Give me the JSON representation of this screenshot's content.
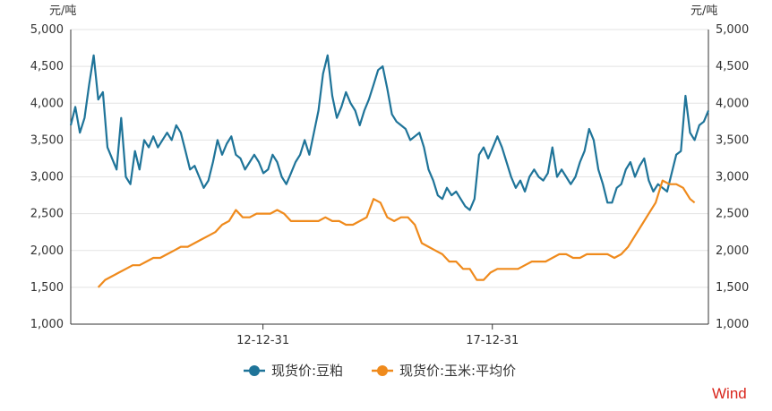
{
  "colors": {
    "soybean_meal": "#1f7499",
    "corn_avg": "#ef8a1c",
    "axis": "#333333",
    "grid": "#e3e3e3",
    "watermark": "#d9261c"
  },
  "watermark": "Wind",
  "chart_data": {
    "type": "line",
    "title": "",
    "y_unit_left": "元/吨",
    "y_unit_right": "元/吨",
    "ylim": [
      1000,
      5000
    ],
    "yticks": [
      "1,000",
      "1,500",
      "2,000",
      "2,500",
      "3,000",
      "3,500",
      "4,000",
      "4,500",
      "5,000"
    ],
    "grid": true,
    "legend_position": "bottom-center",
    "x_ticks": [
      {
        "label": "12-12-31",
        "t": 2012.99
      },
      {
        "label": "17-12-31",
        "t": 2017.99
      }
    ],
    "xlim": [
      2008.8,
      2022.7
    ],
    "series": [
      {
        "name": "现货价:豆粕",
        "color": "#1f7499",
        "points": [
          [
            2008.8,
            3700
          ],
          [
            2008.9,
            3950
          ],
          [
            2009.0,
            3600
          ],
          [
            2009.1,
            3800
          ],
          [
            2009.2,
            4250
          ],
          [
            2009.3,
            4650
          ],
          [
            2009.4,
            4050
          ],
          [
            2009.5,
            4150
          ],
          [
            2009.6,
            3400
          ],
          [
            2009.7,
            3250
          ],
          [
            2009.8,
            3100
          ],
          [
            2009.9,
            3800
          ],
          [
            2010.0,
            3000
          ],
          [
            2010.1,
            2900
          ],
          [
            2010.2,
            3350
          ],
          [
            2010.3,
            3100
          ],
          [
            2010.4,
            3500
          ],
          [
            2010.5,
            3400
          ],
          [
            2010.6,
            3550
          ],
          [
            2010.7,
            3400
          ],
          [
            2010.8,
            3500
          ],
          [
            2010.9,
            3600
          ],
          [
            2011.0,
            3500
          ],
          [
            2011.1,
            3700
          ],
          [
            2011.2,
            3600
          ],
          [
            2011.3,
            3350
          ],
          [
            2011.4,
            3100
          ],
          [
            2011.5,
            3150
          ],
          [
            2011.6,
            3000
          ],
          [
            2011.7,
            2850
          ],
          [
            2011.8,
            2950
          ],
          [
            2011.9,
            3200
          ],
          [
            2012.0,
            3500
          ],
          [
            2012.1,
            3300
          ],
          [
            2012.2,
            3450
          ],
          [
            2012.3,
            3550
          ],
          [
            2012.4,
            3300
          ],
          [
            2012.5,
            3250
          ],
          [
            2012.6,
            3100
          ],
          [
            2012.7,
            3200
          ],
          [
            2012.8,
            3300
          ],
          [
            2012.9,
            3200
          ],
          [
            2013.0,
            3050
          ],
          [
            2013.1,
            3100
          ],
          [
            2013.2,
            3300
          ],
          [
            2013.3,
            3200
          ],
          [
            2013.4,
            3000
          ],
          [
            2013.5,
            2900
          ],
          [
            2013.6,
            3050
          ],
          [
            2013.7,
            3200
          ],
          [
            2013.8,
            3300
          ],
          [
            2013.9,
            3500
          ],
          [
            2014.0,
            3300
          ],
          [
            2014.1,
            3600
          ],
          [
            2014.2,
            3900
          ],
          [
            2014.3,
            4400
          ],
          [
            2014.4,
            4650
          ],
          [
            2014.5,
            4100
          ],
          [
            2014.6,
            3800
          ],
          [
            2014.7,
            3950
          ],
          [
            2014.8,
            4150
          ],
          [
            2014.9,
            4000
          ],
          [
            2015.0,
            3900
          ],
          [
            2015.1,
            3700
          ],
          [
            2015.2,
            3900
          ],
          [
            2015.3,
            4050
          ],
          [
            2015.4,
            4250
          ],
          [
            2015.5,
            4450
          ],
          [
            2015.6,
            4500
          ],
          [
            2015.7,
            4200
          ],
          [
            2015.8,
            3850
          ],
          [
            2015.9,
            3750
          ],
          [
            2016.0,
            3700
          ],
          [
            2016.1,
            3650
          ],
          [
            2016.2,
            3500
          ],
          [
            2016.3,
            3550
          ],
          [
            2016.4,
            3600
          ],
          [
            2016.5,
            3400
          ],
          [
            2016.6,
            3100
          ],
          [
            2016.7,
            2950
          ],
          [
            2016.8,
            2750
          ],
          [
            2016.9,
            2700
          ],
          [
            2017.0,
            2850
          ],
          [
            2017.1,
            2750
          ],
          [
            2017.2,
            2800
          ],
          [
            2017.3,
            2700
          ],
          [
            2017.4,
            2600
          ],
          [
            2017.5,
            2550
          ],
          [
            2017.6,
            2700
          ],
          [
            2017.7,
            3300
          ],
          [
            2017.8,
            3400
          ],
          [
            2017.9,
            3250
          ],
          [
            2018.0,
            3400
          ],
          [
            2018.1,
            3550
          ],
          [
            2018.2,
            3400
          ],
          [
            2018.3,
            3200
          ],
          [
            2018.4,
            3000
          ],
          [
            2018.5,
            2850
          ],
          [
            2018.6,
            2950
          ],
          [
            2018.7,
            2800
          ],
          [
            2018.8,
            3000
          ],
          [
            2018.9,
            3100
          ],
          [
            2019.0,
            3000
          ],
          [
            2019.1,
            2950
          ],
          [
            2019.2,
            3050
          ],
          [
            2019.3,
            3400
          ],
          [
            2019.4,
            3000
          ],
          [
            2019.5,
            3100
          ],
          [
            2019.6,
            3000
          ],
          [
            2019.7,
            2900
          ],
          [
            2019.8,
            3000
          ],
          [
            2019.9,
            3200
          ],
          [
            2020.0,
            3350
          ],
          [
            2020.1,
            3650
          ],
          [
            2020.2,
            3500
          ],
          [
            2020.3,
            3100
          ],
          [
            2020.4,
            2900
          ],
          [
            2020.5,
            2650
          ],
          [
            2020.6,
            2650
          ],
          [
            2020.7,
            2850
          ],
          [
            2020.8,
            2900
          ],
          [
            2020.9,
            3100
          ],
          [
            2021.0,
            3200
          ],
          [
            2021.1,
            3000
          ],
          [
            2021.2,
            3150
          ],
          [
            2021.3,
            3250
          ],
          [
            2021.4,
            2950
          ],
          [
            2021.5,
            2800
          ],
          [
            2021.6,
            2900
          ],
          [
            2021.7,
            2850
          ],
          [
            2021.8,
            2800
          ],
          [
            2021.9,
            3050
          ],
          [
            2022.0,
            3300
          ],
          [
            2022.1,
            3350
          ],
          [
            2022.2,
            4100
          ],
          [
            2022.3,
            3600
          ],
          [
            2022.4,
            3500
          ],
          [
            2022.5,
            3700
          ],
          [
            2022.6,
            3750
          ],
          [
            2022.7,
            3900
          ]
        ]
      },
      {
        "name": "现货价:玉米:平均价",
        "color": "#ef8a1c",
        "points": [
          [
            2009.4,
            1500
          ],
          [
            2009.55,
            1600
          ],
          [
            2009.7,
            1650
          ],
          [
            2009.85,
            1700
          ],
          [
            2010.0,
            1750
          ],
          [
            2010.15,
            1800
          ],
          [
            2010.3,
            1800
          ],
          [
            2010.45,
            1850
          ],
          [
            2010.6,
            1900
          ],
          [
            2010.75,
            1900
          ],
          [
            2010.9,
            1950
          ],
          [
            2011.05,
            2000
          ],
          [
            2011.2,
            2050
          ],
          [
            2011.35,
            2050
          ],
          [
            2011.5,
            2100
          ],
          [
            2011.65,
            2150
          ],
          [
            2011.8,
            2200
          ],
          [
            2011.95,
            2250
          ],
          [
            2012.1,
            2350
          ],
          [
            2012.25,
            2400
          ],
          [
            2012.4,
            2550
          ],
          [
            2012.55,
            2450
          ],
          [
            2012.7,
            2450
          ],
          [
            2012.85,
            2500
          ],
          [
            2013.0,
            2500
          ],
          [
            2013.15,
            2500
          ],
          [
            2013.3,
            2550
          ],
          [
            2013.45,
            2500
          ],
          [
            2013.6,
            2400
          ],
          [
            2013.75,
            2400
          ],
          [
            2013.9,
            2400
          ],
          [
            2014.05,
            2400
          ],
          [
            2014.2,
            2400
          ],
          [
            2014.35,
            2450
          ],
          [
            2014.5,
            2400
          ],
          [
            2014.65,
            2400
          ],
          [
            2014.8,
            2350
          ],
          [
            2014.95,
            2350
          ],
          [
            2015.1,
            2400
          ],
          [
            2015.25,
            2450
          ],
          [
            2015.4,
            2700
          ],
          [
            2015.55,
            2650
          ],
          [
            2015.7,
            2450
          ],
          [
            2015.85,
            2400
          ],
          [
            2016.0,
            2450
          ],
          [
            2016.15,
            2450
          ],
          [
            2016.3,
            2350
          ],
          [
            2016.45,
            2100
          ],
          [
            2016.6,
            2050
          ],
          [
            2016.75,
            2000
          ],
          [
            2016.9,
            1950
          ],
          [
            2017.05,
            1850
          ],
          [
            2017.2,
            1850
          ],
          [
            2017.35,
            1750
          ],
          [
            2017.5,
            1750
          ],
          [
            2017.65,
            1600
          ],
          [
            2017.8,
            1600
          ],
          [
            2017.95,
            1700
          ],
          [
            2018.1,
            1750
          ],
          [
            2018.25,
            1750
          ],
          [
            2018.4,
            1750
          ],
          [
            2018.55,
            1750
          ],
          [
            2018.7,
            1800
          ],
          [
            2018.85,
            1850
          ],
          [
            2019.0,
            1850
          ],
          [
            2019.15,
            1850
          ],
          [
            2019.3,
            1900
          ],
          [
            2019.45,
            1950
          ],
          [
            2019.6,
            1950
          ],
          [
            2019.75,
            1900
          ],
          [
            2019.9,
            1900
          ],
          [
            2020.05,
            1950
          ],
          [
            2020.2,
            1950
          ],
          [
            2020.35,
            1950
          ],
          [
            2020.5,
            1950
          ],
          [
            2020.65,
            1900
          ],
          [
            2020.8,
            1950
          ],
          [
            2020.95,
            2050
          ],
          [
            2021.1,
            2200
          ],
          [
            2021.25,
            2350
          ],
          [
            2021.4,
            2500
          ],
          [
            2021.55,
            2650
          ],
          [
            2021.7,
            2950
          ],
          [
            2021.85,
            2900
          ],
          [
            2022.0,
            2900
          ],
          [
            2022.15,
            2850
          ],
          [
            2022.3,
            2700
          ],
          [
            2022.4,
            2650
          ]
        ]
      }
    ]
  }
}
